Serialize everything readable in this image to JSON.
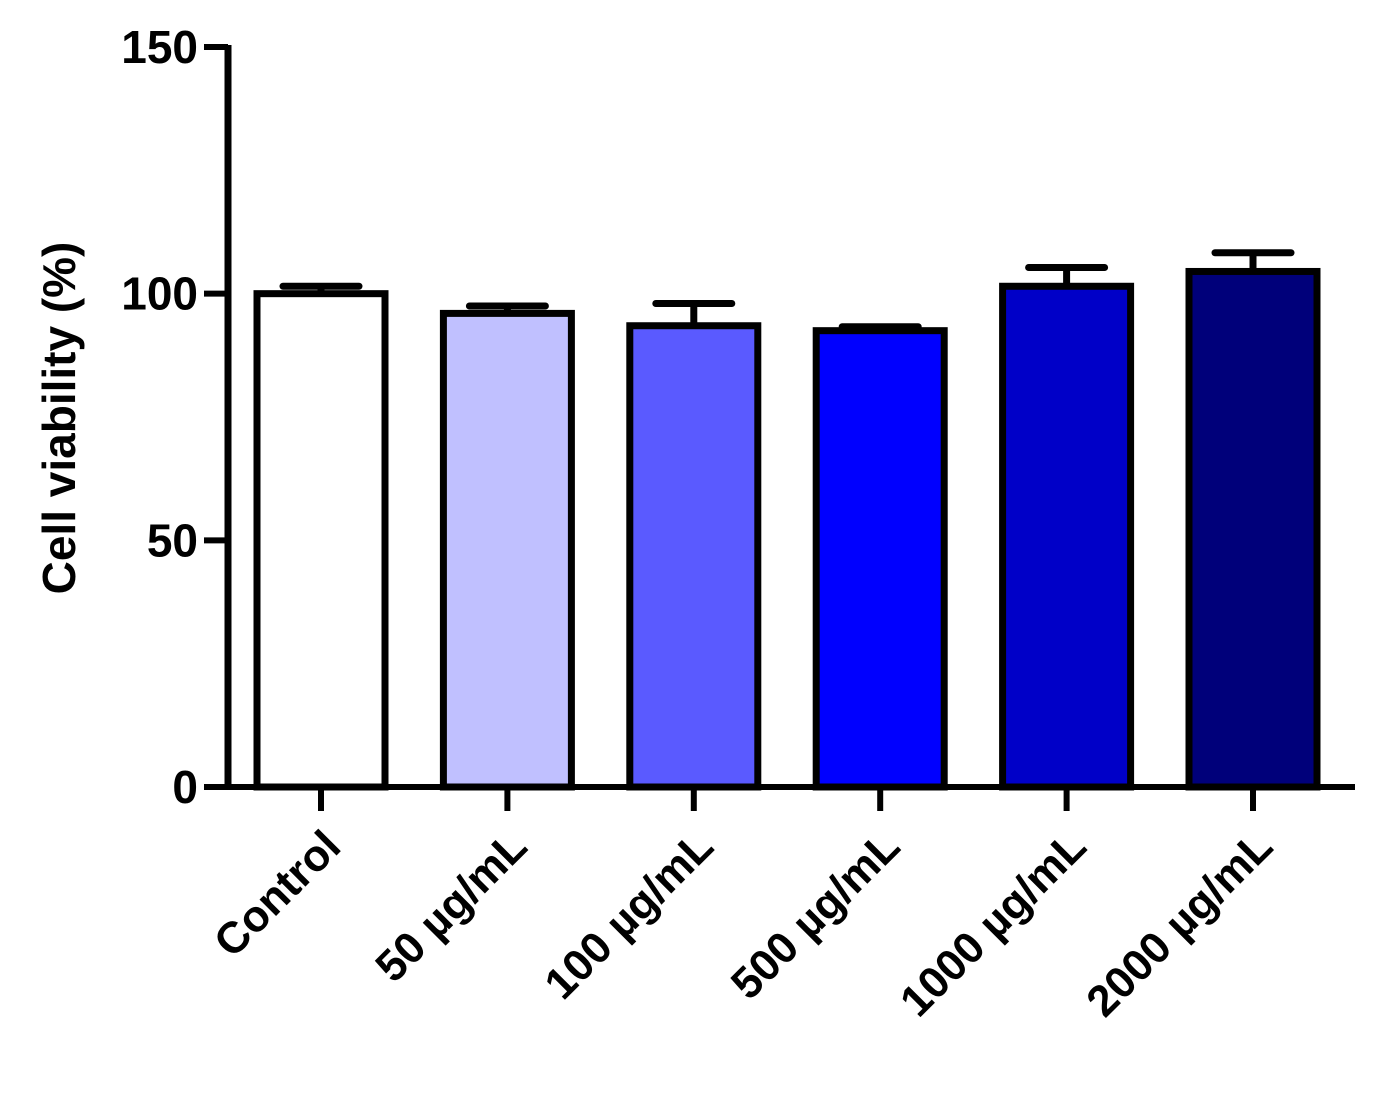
{
  "chart_data": {
    "type": "bar",
    "title": "",
    "xlabel": "",
    "ylabel": "Cell viability (%)",
    "ylim": [
      0,
      150
    ],
    "yticks": [
      0,
      50,
      100,
      150
    ],
    "grid": false,
    "legend": "none",
    "categories": [
      "Control",
      "50 µg/mL",
      "100 µg/mL",
      "500 µg/mL",
      "1000 µg/mL",
      "2000 µg/mL"
    ],
    "values": [
      100,
      96,
      93.5,
      92.5,
      101.5,
      104.5
    ],
    "errors": [
      1.5,
      1.5,
      4.5,
      0.8,
      3.8,
      3.8
    ],
    "colors": [
      "#ffffff",
      "#c0c0ff",
      "#5a5aff",
      "#0000ff",
      "#0000c8",
      "#00007a"
    ]
  }
}
